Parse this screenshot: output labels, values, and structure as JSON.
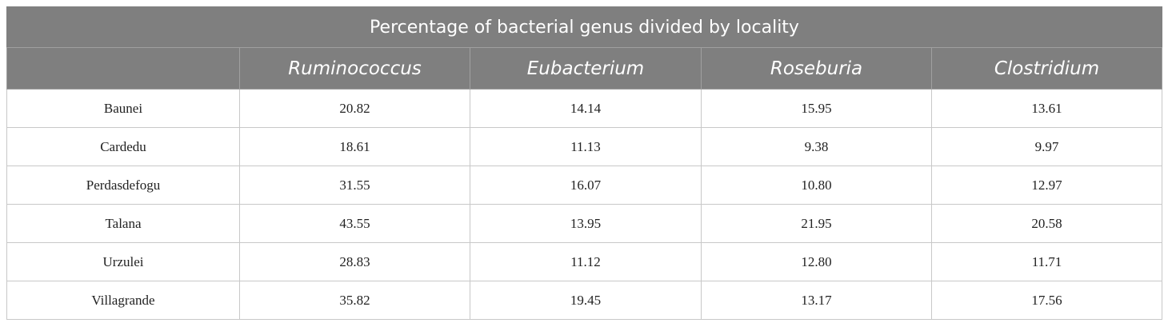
{
  "table": {
    "title": "Percentage of bacterial genus divided by locality",
    "columns": [
      "Ruminococcus",
      "Eubacterium",
      "Roseburia",
      "Clostridium"
    ],
    "rows": [
      [
        "Baunei",
        "20.82",
        "14.14",
        "15.95",
        "13.61"
      ],
      [
        "Cardedu",
        "18.61",
        "11.13",
        "9.38",
        "9.97"
      ],
      [
        "Perdasdefogu",
        "31.55",
        "16.07",
        "10.80",
        "12.97"
      ],
      [
        "Talana",
        "43.55",
        "13.95",
        "21.95",
        "20.58"
      ],
      [
        "Urzulei",
        "28.83",
        "11.12",
        "12.80",
        "11.71"
      ],
      [
        "Villagrande",
        "35.82",
        "19.45",
        "13.17",
        "17.56"
      ]
    ]
  }
}
